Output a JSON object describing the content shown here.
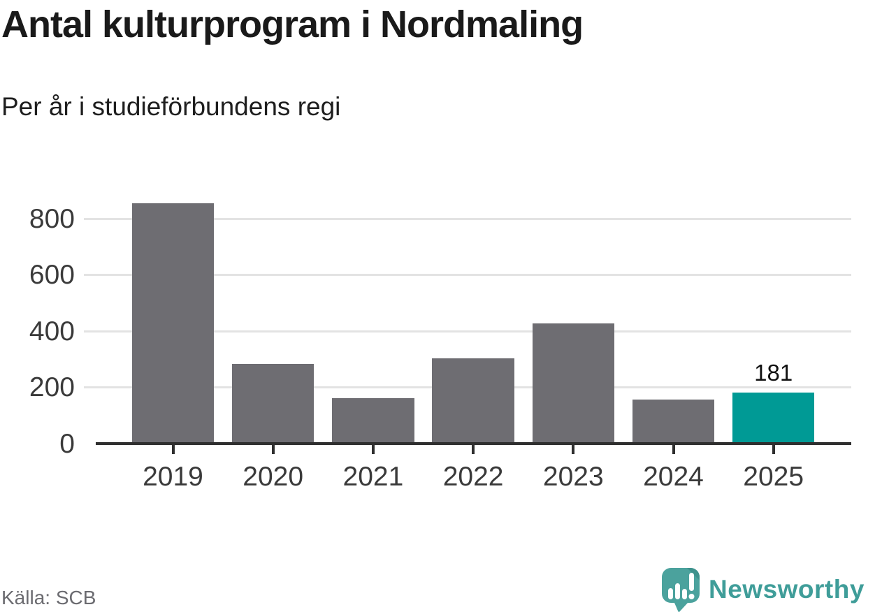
{
  "header": {
    "title": "Antal kulturprogram i Nordmaling",
    "subtitle": "Per år i studieförbundens regi"
  },
  "footer": {
    "source": "Källa: SCB",
    "brand_name": "Newsworthy"
  },
  "colors": {
    "bar_default": "#6e6d72",
    "bar_highlight": "#009a95",
    "gridline": "#e3e3e3",
    "axis": "#2f2f2f",
    "tick_label": "#3a3a3a",
    "value_label": "#111111",
    "source_text": "#6b6b70",
    "brand_teal": "#3f9d99",
    "logo_bubble_teal": "#4ba29d",
    "logo_fold_teal": "#3e918c",
    "logo_glyph_white": "#ffffff"
  },
  "chart_data": {
    "type": "bar",
    "title": "Antal kulturprogram i Nordmaling",
    "subtitle": "Per år i studieförbundens regi",
    "categories": [
      "2019",
      "2020",
      "2021",
      "2022",
      "2023",
      "2024",
      "2025"
    ],
    "values": [
      855,
      284,
      161,
      303,
      427,
      156,
      181
    ],
    "highlight_index": 6,
    "highlight_label": "181",
    "yticks": [
      0,
      200,
      400,
      600,
      800
    ],
    "ylim": [
      0,
      900
    ],
    "xlabel": "",
    "ylabel": "",
    "grid": "horizontal",
    "legend": "none",
    "source": "Källa: SCB"
  }
}
